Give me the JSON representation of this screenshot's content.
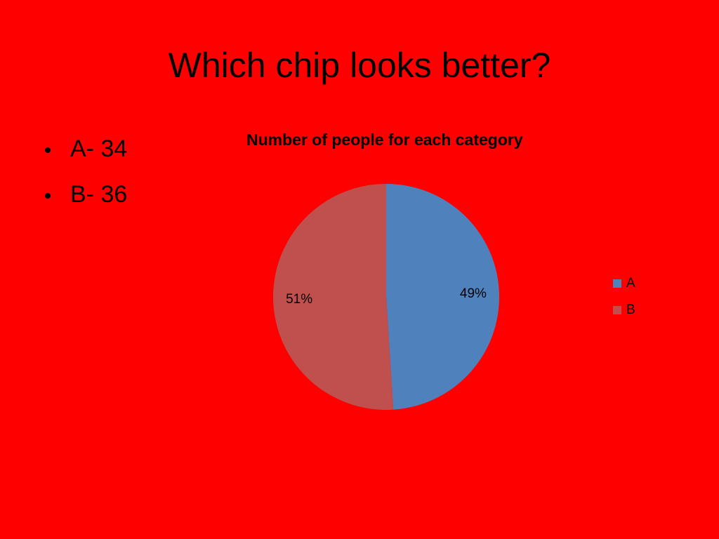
{
  "slide": {
    "title": "Which chip looks better?",
    "bullets": [
      "A- 34",
      "B- 36"
    ]
  },
  "chart_data": {
    "type": "pie",
    "title": "Number of people for each category",
    "categories": [
      "A",
      "B"
    ],
    "values": [
      49,
      51
    ],
    "value_labels": [
      "49%",
      "51%"
    ],
    "colors": [
      "#4f81bd",
      "#c0504d"
    ],
    "legend": "right"
  }
}
